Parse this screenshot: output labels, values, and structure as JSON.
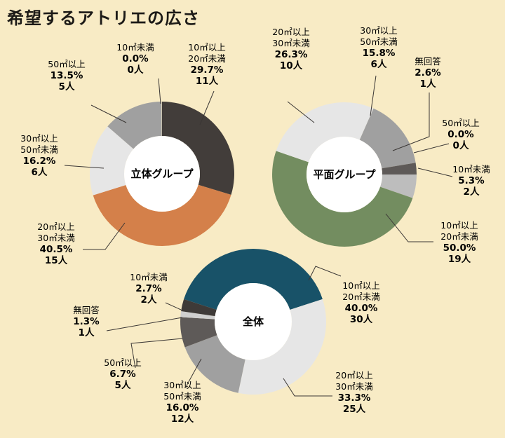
{
  "title": "希望するアトリエの広さ",
  "chart_data": [
    {
      "type": "donut",
      "name": "立体グループ",
      "series": [
        {
          "category": "10㎡以上20㎡未満",
          "percent": 29.7,
          "count": 11,
          "percent_text": "29.7%",
          "count_text": "11人",
          "color": "#423d3a"
        },
        {
          "category": "20㎡以上30㎡未満",
          "percent": 40.5,
          "count": 15,
          "percent_text": "40.5%",
          "count_text": "15人",
          "color": "#d4804a"
        },
        {
          "category": "30㎡以上50㎡未満",
          "percent": 16.2,
          "count": 6,
          "percent_text": "16.2%",
          "count_text": "6人",
          "color": "#e6e6e6"
        },
        {
          "category": "50㎡以上",
          "percent": 13.5,
          "count": 5,
          "percent_text": "13.5%",
          "count_text": "5人",
          "color": "#a0a0a0"
        },
        {
          "category": "10㎡未満",
          "percent": 0.0,
          "count": 0,
          "percent_text": "0.0%",
          "count_text": "0人",
          "color": "#b4b4b4"
        }
      ]
    },
    {
      "type": "donut",
      "name": "平面グループ",
      "series": [
        {
          "category": "10㎡未満",
          "percent": 5.3,
          "count": 2,
          "percent_text": "5.3%",
          "count_text": "2人",
          "color": "#bdbdbd"
        },
        {
          "category": "10㎡以上20㎡未満",
          "percent": 50.0,
          "count": 19,
          "percent_text": "50.0%",
          "count_text": "19人",
          "color": "#738d60"
        },
        {
          "category": "20㎡以上30㎡未満",
          "percent": 26.3,
          "count": 10,
          "percent_text": "26.3%",
          "count_text": "10人",
          "color": "#e6e6e6"
        },
        {
          "category": "30㎡以上50㎡未満",
          "percent": 15.8,
          "count": 6,
          "percent_text": "15.8%",
          "count_text": "6人",
          "color": "#a0a0a0"
        },
        {
          "category": "無回答",
          "percent": 2.6,
          "count": 1,
          "percent_text": "2.6%",
          "count_text": "1人",
          "color": "#5e5a58"
        },
        {
          "category": "50㎡以上",
          "percent": 0.0,
          "count": 0,
          "percent_text": "0.0%",
          "count_text": "0人",
          "color": "#7a7a7a"
        }
      ]
    },
    {
      "type": "donut",
      "name": "全体",
      "series": [
        {
          "category": "10㎡以上20㎡未満",
          "percent": 40.0,
          "count": 30,
          "percent_text": "40.0%",
          "count_text": "30人",
          "color": "#185268"
        },
        {
          "category": "20㎡以上30㎡未満",
          "percent": 33.3,
          "count": 25,
          "percent_text": "33.3%",
          "count_text": "25人",
          "color": "#e6e6e6"
        },
        {
          "category": "30㎡以上50㎡未満",
          "percent": 16.0,
          "count": 12,
          "percent_text": "16.0%",
          "count_text": "12人",
          "color": "#a0a0a0"
        },
        {
          "category": "50㎡以上",
          "percent": 6.7,
          "count": 5,
          "percent_text": "6.7%",
          "count_text": "5人",
          "color": "#5e5a58"
        },
        {
          "category": "無回答",
          "percent": 1.3,
          "count": 1,
          "percent_text": "1.3%",
          "count_text": "1人",
          "color": "#cfcfcf"
        },
        {
          "category": "10㎡未満",
          "percent": 2.7,
          "count": 2,
          "percent_text": "2.7%",
          "count_text": "2人",
          "color": "#3e3a38"
        }
      ]
    }
  ]
}
